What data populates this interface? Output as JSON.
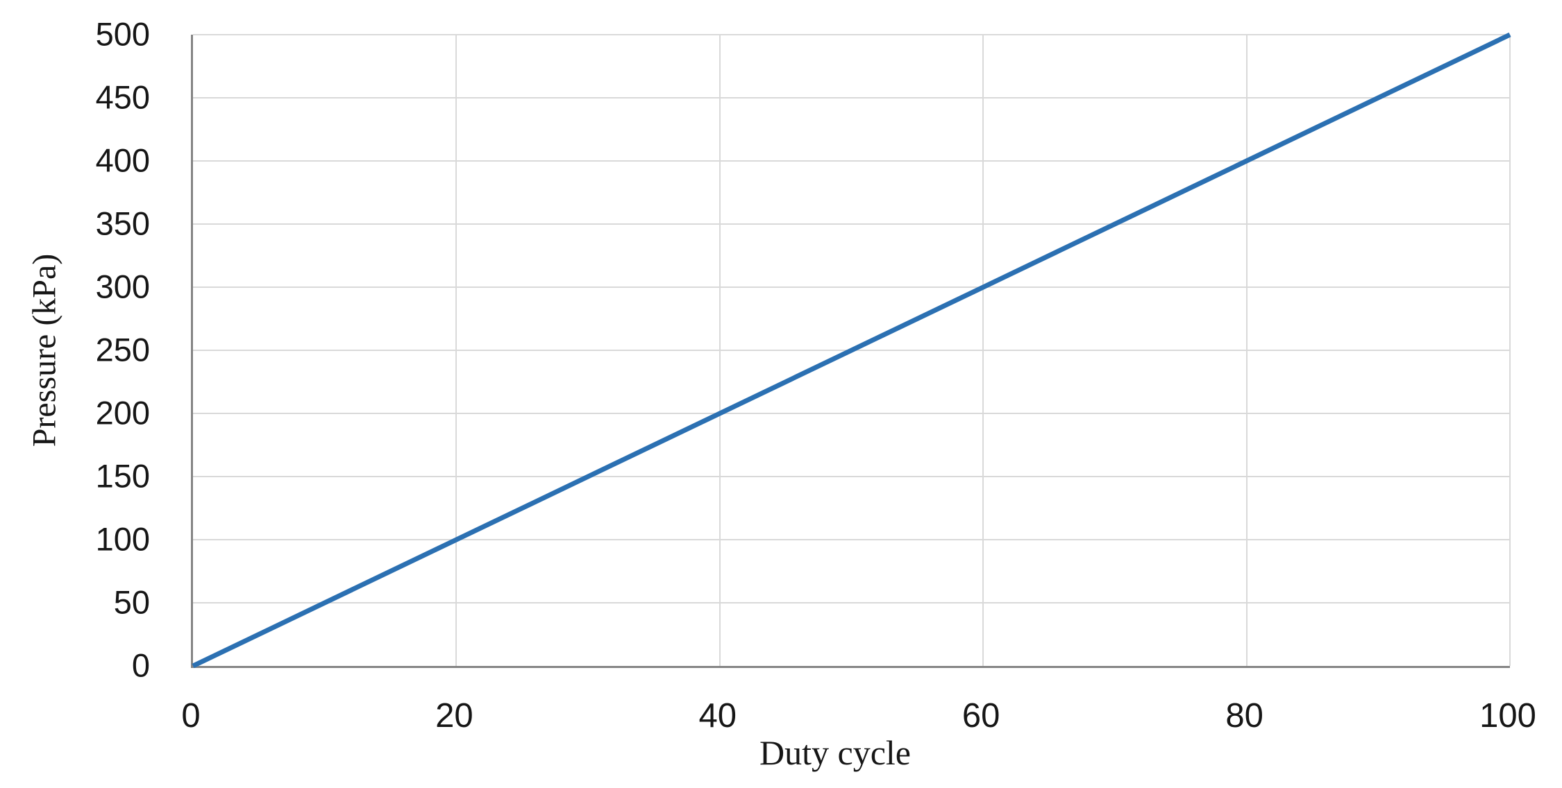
{
  "chart_data": {
    "type": "line",
    "title": "",
    "xlabel": "Duty cycle",
    "ylabel": "Pressure (kPa)",
    "x": [
      0,
      100
    ],
    "series": [
      {
        "name": "Pressure",
        "values": [
          0,
          500
        ]
      }
    ],
    "xlim": [
      0,
      100
    ],
    "ylim": [
      0,
      500
    ],
    "x_ticks": [
      0,
      20,
      40,
      60,
      80,
      100
    ],
    "y_ticks": [
      0,
      50,
      100,
      150,
      200,
      250,
      300,
      350,
      400,
      450,
      500
    ],
    "grid": true,
    "legend": false,
    "line_color": "#2b70b2",
    "line_width": 7,
    "gridline_color": "#d9d9d9",
    "axis_line_color": "#848484",
    "text_color": "#161616"
  }
}
